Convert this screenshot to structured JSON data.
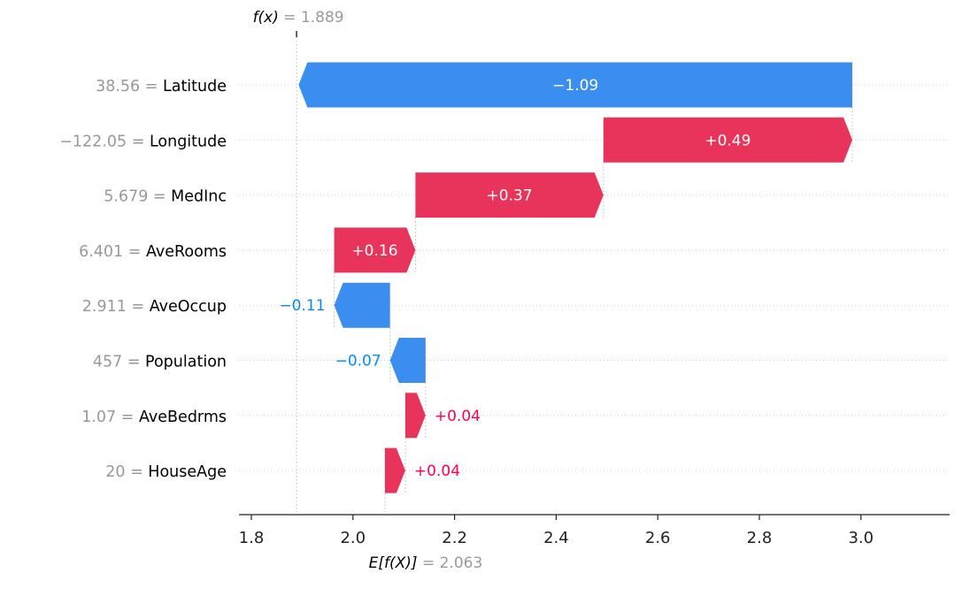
{
  "chart_data": {
    "type": "waterfall",
    "fx": {
      "label": "f(x)",
      "eq": " = ",
      "value": "1.889",
      "numeric": 1.889
    },
    "ex": {
      "label": "E[f(X)]",
      "eq": " = ",
      "value": "2.063",
      "numeric": 2.063
    },
    "features": [
      {
        "value": "38.56",
        "eq": " = ",
        "name": "Latitude",
        "contribution": -1.09,
        "label": "−1.09"
      },
      {
        "value": "−122.05",
        "eq": " = ",
        "name": "Longitude",
        "contribution": 0.49,
        "label": "+0.49"
      },
      {
        "value": "5.679",
        "eq": " = ",
        "name": "MedInc",
        "contribution": 0.37,
        "label": "+0.37"
      },
      {
        "value": "6.401",
        "eq": " = ",
        "name": "AveRooms",
        "contribution": 0.16,
        "label": "+0.16"
      },
      {
        "value": "2.911",
        "eq": " = ",
        "name": "AveOccup",
        "contribution": -0.11,
        "label": "−0.11"
      },
      {
        "value": "457",
        "eq": " = ",
        "name": "Population",
        "contribution": -0.07,
        "label": "−0.07"
      },
      {
        "value": "1.07",
        "eq": " = ",
        "name": "AveBedrms",
        "contribution": 0.04,
        "label": "+0.04"
      },
      {
        "value": "20",
        "eq": " = ",
        "name": "HouseAge",
        "contribution": 0.04,
        "label": "+0.04"
      }
    ],
    "x_ticks": [
      {
        "value": 1.8,
        "label": "1.8"
      },
      {
        "value": 2.0,
        "label": "2.0"
      },
      {
        "value": 2.2,
        "label": "2.2"
      },
      {
        "value": 2.4,
        "label": "2.4"
      },
      {
        "value": 2.6,
        "label": "2.6"
      },
      {
        "value": 2.8,
        "label": "2.8"
      },
      {
        "value": 3.0,
        "label": "3.0"
      }
    ],
    "xlim": [
      1.77,
      3.155
    ],
    "colors": {
      "positive": "#ff0051",
      "negative": "#008bfb",
      "positive_bar": "#e8345a",
      "negative_bar": "#3a8ef0",
      "muted_text": "#999999",
      "text": "#000000"
    }
  }
}
